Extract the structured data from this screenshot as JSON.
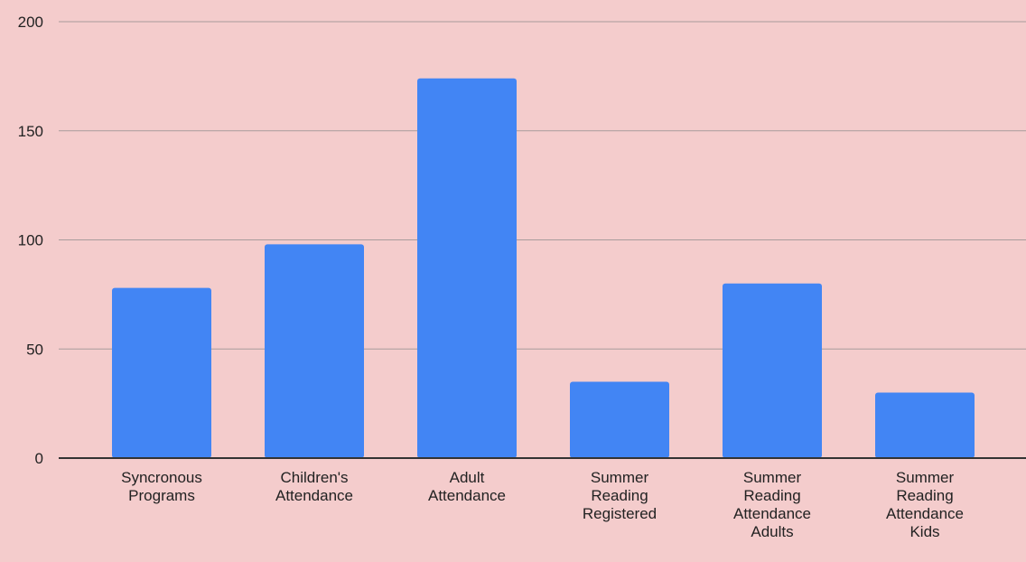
{
  "chart_data": {
    "type": "bar",
    "categories": [
      [
        "Syncronous",
        "Programs"
      ],
      [
        "Children's",
        "Attendance"
      ],
      [
        "Adult",
        "Attendance"
      ],
      [
        "Summer",
        "Reading",
        "Registered"
      ],
      [
        "Summer",
        "Reading",
        "Attendance",
        "Adults"
      ],
      [
        "Summer",
        "Reading",
        "Attendance",
        "Kids"
      ]
    ],
    "values": [
      78,
      98,
      174,
      35,
      80,
      30
    ],
    "ylim": [
      0,
      200
    ],
    "yticks": [
      "0",
      "50",
      "100",
      "150",
      "200"
    ],
    "grid": true,
    "legend": "none",
    "title": "",
    "xlabel": "",
    "ylabel": "",
    "colors": {
      "background": "#f4cccc",
      "bar": "#4285f4",
      "gridline": "#a89c9c",
      "baseline": "#333333",
      "text": "#222222"
    }
  }
}
